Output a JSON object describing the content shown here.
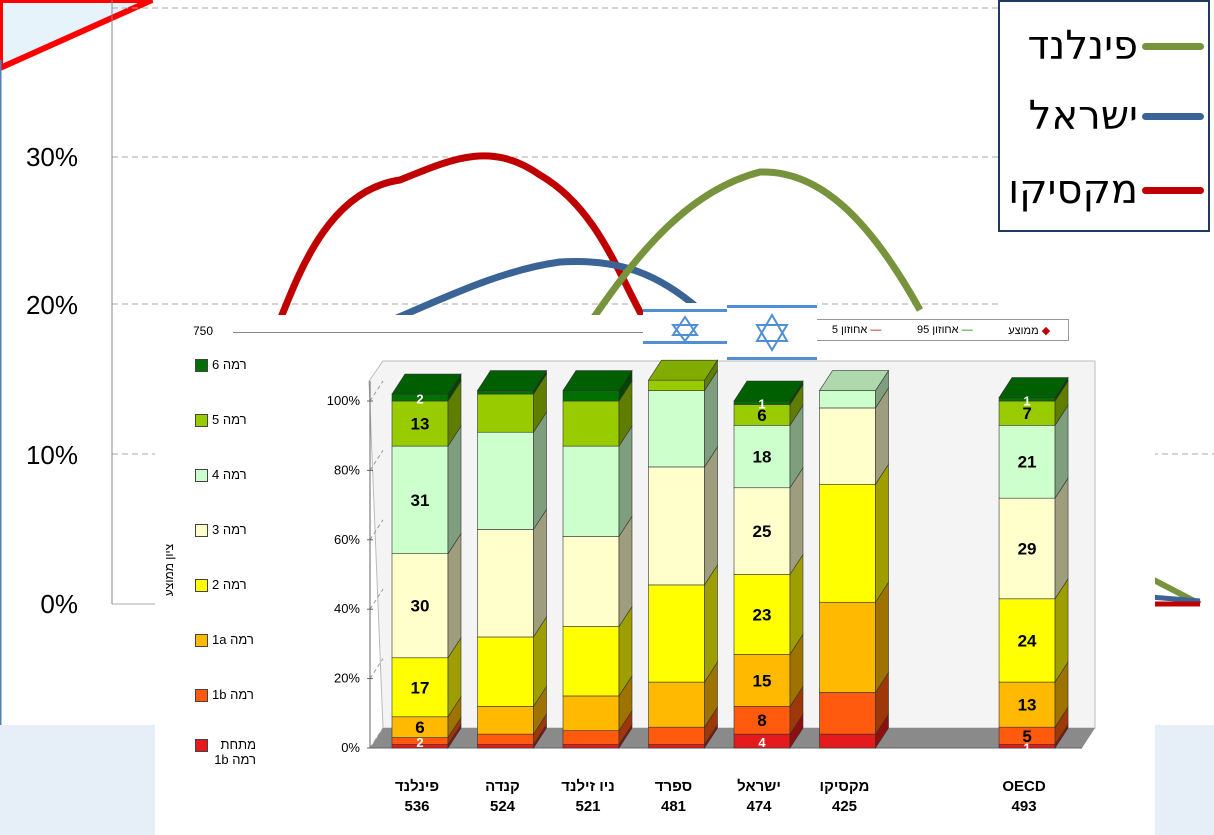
{
  "background_chart": {
    "y_ticks": [
      "0%",
      "10%",
      "20%",
      "30%"
    ],
    "legend": [
      {
        "name": "פינלנד",
        "color": "#77933c"
      },
      {
        "name": "ישראל",
        "color": "#3a6496"
      },
      {
        "name": "מקסיקו",
        "color": "#c00000"
      }
    ]
  },
  "chart_data": {
    "type": "bar",
    "stacked": true,
    "categories": [
      {
        "name": "פינלנד",
        "score": "536"
      },
      {
        "name": "קנדה",
        "score": "524"
      },
      {
        "name": "ניו זילנד",
        "score": "521"
      },
      {
        "name": "ספרד",
        "score": "481"
      },
      {
        "name": "ישראל",
        "score": "474"
      },
      {
        "name": "מקסיקו",
        "score": "425"
      },
      {
        "name": "",
        "score": ""
      },
      {
        "name": "OECD",
        "score": "493"
      }
    ],
    "y_ticks": [
      "0%",
      "20%",
      "40%",
      "60%",
      "80%",
      "100%"
    ],
    "top_axis_value": "750",
    "ylabel": "ציון ממוצע",
    "header_legend": [
      "ממוצע",
      "אחוזון 95",
      "אחוזון 5"
    ],
    "header_legend_colors": [
      "#c00000",
      "#008000",
      "#c00000"
    ],
    "series": [
      {
        "name": "מתחת רמה 1b",
        "color": "#e41a1c",
        "values": [
          1,
          1,
          1,
          1,
          4,
          4,
          null,
          1
        ],
        "labels": [
          "",
          "",
          "",
          "",
          "4",
          "",
          "",
          "1"
        ]
      },
      {
        "name": "רמה 1b",
        "color": "#ff5a0e",
        "values": [
          2,
          3,
          4,
          5,
          8,
          12,
          null,
          5
        ],
        "labels": [
          "2",
          "",
          "",
          "",
          "8",
          "",
          "",
          "5"
        ]
      },
      {
        "name": "רמה 1a",
        "color": "#ffb900",
        "values": [
          6,
          8,
          10,
          13,
          15,
          26,
          null,
          13
        ],
        "labels": [
          "6",
          "",
          "",
          "",
          "15",
          "",
          "",
          "13"
        ]
      },
      {
        "name": "רמה 2",
        "color": "#ffff00",
        "values": [
          17,
          20,
          20,
          28,
          23,
          34,
          null,
          24
        ],
        "labels": [
          "17",
          "",
          "",
          "",
          "23",
          "",
          "",
          "24"
        ]
      },
      {
        "name": "רמה 3",
        "color": "#ffffcc",
        "values": [
          30,
          31,
          26,
          34,
          25,
          22,
          null,
          29
        ],
        "labels": [
          "30",
          "",
          "",
          "",
          "25",
          "",
          "",
          "29"
        ]
      },
      {
        "name": "רמה 4",
        "color": "#ccffcc",
        "values": [
          31,
          28,
          26,
          22,
          18,
          5,
          null,
          21
        ],
        "labels": [
          "31",
          "",
          "",
          "",
          "18",
          "",
          "",
          "21"
        ]
      },
      {
        "name": "רמה 5",
        "color": "#99cc00",
        "values": [
          13,
          11,
          13,
          3,
          6,
          0,
          null,
          7
        ],
        "labels": [
          "13",
          "",
          "",
          "",
          "6",
          "",
          "",
          "7"
        ]
      },
      {
        "name": "רמה 6",
        "color": "#007000",
        "values": [
          2,
          1,
          3,
          0,
          1,
          0,
          null,
          1
        ],
        "labels": [
          "2",
          "",
          "",
          "",
          "1",
          "",
          "",
          "1"
        ]
      }
    ]
  }
}
